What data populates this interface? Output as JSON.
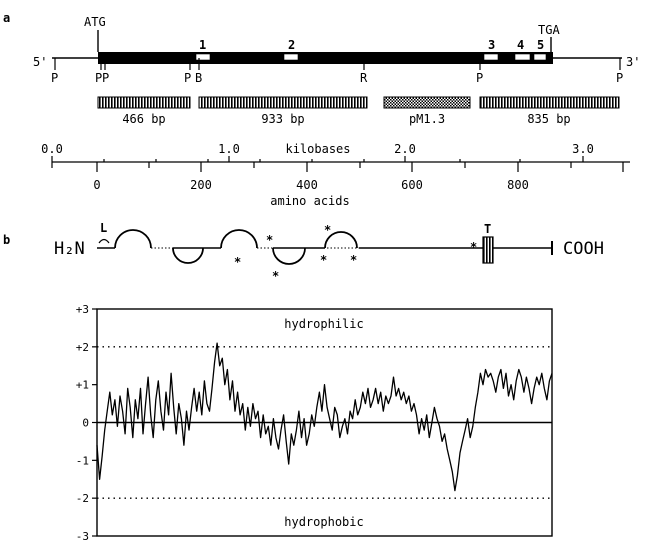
{
  "panel_a": {
    "label": "a",
    "five_prime": "5'",
    "three_prime": "3'",
    "start_codon": "ATG",
    "stop_codon": "TGA",
    "exon_boxes": [
      "1",
      "2",
      "3",
      "4",
      "5"
    ],
    "restriction_sites": [
      "P",
      "P",
      "P",
      "P",
      "B",
      "R",
      "P",
      "P"
    ],
    "fragments": [
      "466 bp",
      "933 bp",
      "pM1.3",
      "835 bp"
    ],
    "kb_axis": {
      "label": "kilobases",
      "ticks": [
        "0.0",
        "1.0",
        "2.0",
        "3.0"
      ]
    },
    "aa_axis": {
      "label": "amino acids",
      "ticks": [
        "0",
        "200",
        "400",
        "600",
        "800"
      ]
    }
  },
  "panel_b": {
    "label": "b",
    "n_terminus": "H₂N",
    "c_terminus": "COOH",
    "leader": "L",
    "transmembrane": "T",
    "glycosylation_mark": "*"
  },
  "chart_data": {
    "type": "line",
    "title": "",
    "xlabel": "",
    "ylabel": "",
    "ylim": [
      -3,
      3
    ],
    "yticks": [
      "+3",
      "+2",
      "+1",
      "0",
      "-1",
      "-2",
      "-3"
    ],
    "reference_lines": [
      2,
      -2
    ],
    "region_labels": {
      "top": "hydrophilic",
      "bottom": "hydrophobic"
    },
    "x": [
      0,
      5,
      10,
      15,
      20,
      25,
      30,
      35,
      40,
      45,
      50,
      55,
      60,
      65,
      70,
      75,
      80,
      85,
      90,
      95,
      100,
      105,
      110,
      115,
      120,
      125,
      130,
      135,
      140,
      145,
      150,
      155,
      160,
      165,
      170,
      175,
      180,
      185,
      190,
      195,
      200,
      205,
      210,
      215,
      220,
      225,
      230,
      235,
      240,
      245,
      250,
      255,
      260,
      265,
      270,
      275,
      280,
      285,
      290,
      295,
      300,
      305,
      310,
      315,
      320,
      325,
      330,
      335,
      340,
      345,
      350,
      355,
      360,
      365,
      370,
      375,
      380,
      385,
      390,
      395,
      400,
      405,
      410,
      415,
      420,
      425,
      430,
      435,
      440,
      445,
      450,
      455,
      460,
      465,
      470,
      475,
      480,
      485,
      490,
      495,
      500,
      505,
      510,
      515,
      520,
      525,
      530,
      535,
      540,
      545,
      550,
      555,
      560,
      565,
      570,
      575,
      580,
      585,
      590,
      595,
      600,
      605,
      610,
      615,
      620,
      625,
      630,
      635,
      640,
      645,
      650,
      655,
      660,
      665,
      670,
      675,
      680,
      685,
      690,
      695,
      700,
      705,
      710,
      715,
      720,
      725,
      730,
      735,
      740,
      745,
      750,
      755,
      760,
      765,
      770,
      775,
      780,
      785,
      790,
      795,
      800,
      805,
      810,
      815,
      820,
      825,
      830,
      835,
      840,
      845,
      850,
      855,
      860,
      865,
      870,
      875,
      880,
      885,
      890
    ],
    "series": [
      {
        "values": [
          -0.6,
          -1.5,
          -0.9,
          -0.2,
          0.3,
          0.8,
          0.2,
          0.6,
          -0.1,
          0.7,
          0.3,
          -0.3,
          0.9,
          0.4,
          -0.4,
          0.6,
          0.1,
          0.9,
          -0.3,
          0.5,
          1.2,
          0.2,
          -0.4,
          0.6,
          1.1,
          0.3,
          -0.2,
          0.8,
          0.2,
          1.3,
          0.4,
          -0.3,
          0.5,
          0.1,
          -0.6,
          0.3,
          -0.2,
          0.4,
          0.9,
          0.3,
          0.8,
          0.2,
          1.1,
          0.5,
          0.3,
          0.9,
          1.6,
          2.1,
          1.5,
          1.7,
          1.0,
          1.4,
          0.6,
          1.1,
          0.3,
          0.8,
          0.2,
          0.5,
          -0.2,
          0.4,
          -0.1,
          0.5,
          0.1,
          0.3,
          -0.4,
          0.2,
          -0.3,
          -0.1,
          -0.6,
          0.1,
          -0.4,
          -0.7,
          -0.2,
          0.2,
          -0.5,
          -1.1,
          -0.3,
          -0.6,
          -0.2,
          0.3,
          -0.4,
          0.1,
          -0.6,
          -0.3,
          0.2,
          -0.1,
          0.4,
          0.8,
          0.3,
          1.0,
          0.4,
          0.1,
          -0.2,
          0.4,
          0.2,
          -0.4,
          -0.1,
          0.1,
          -0.3,
          0.3,
          0.1,
          0.6,
          0.2,
          0.4,
          0.8,
          0.5,
          0.9,
          0.4,
          0.6,
          0.9,
          0.5,
          0.8,
          0.3,
          0.7,
          0.5,
          0.7,
          1.2,
          0.7,
          0.9,
          0.6,
          0.8,
          0.5,
          0.7,
          0.3,
          0.5,
          0.2,
          -0.3,
          0.1,
          -0.2,
          0.2,
          -0.4,
          0.0,
          0.4,
          0.1,
          -0.1,
          -0.5,
          -0.3,
          -0.7,
          -1.0,
          -1.3,
          -1.8,
          -1.4,
          -0.8,
          -0.5,
          -0.2,
          0.1,
          -0.4,
          -0.1,
          0.4,
          0.8,
          1.3,
          1.0,
          1.4,
          1.2,
          1.3,
          1.1,
          0.8,
          1.2,
          1.4,
          0.9,
          1.3,
          0.7,
          1.0,
          0.6,
          1.1,
          1.4,
          1.2,
          0.8,
          1.2,
          0.9,
          0.5,
          0.9,
          1.2,
          1.0,
          1.3,
          0.9,
          0.6,
          1.1,
          1.3
        ]
      }
    ]
  }
}
